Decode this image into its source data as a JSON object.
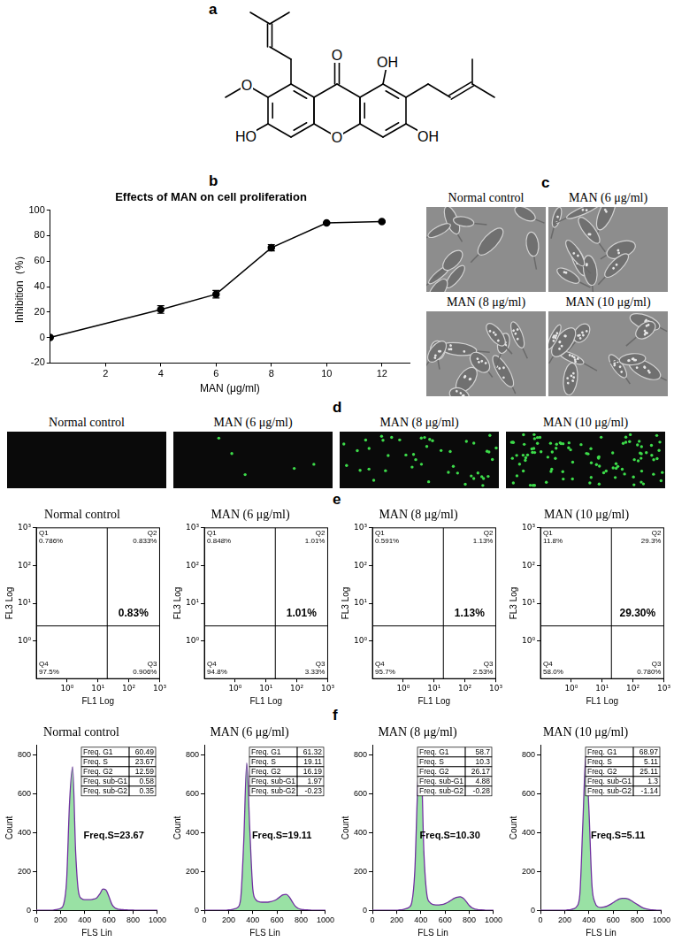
{
  "panels": {
    "a": {
      "label": "a",
      "structure": {
        "carbonyl": "O",
        "ring_oxygen": "O",
        "methoxy": "O",
        "hydroxyl_1": "OH",
        "hydroxyl_3": "OH",
        "hydroxyl_6": "HO"
      }
    },
    "b": {
      "label": "b"
    },
    "c": {
      "label": "c",
      "captions": [
        "Normal control",
        "MAN (6 μg/ml)",
        "MAN (8 μg/ml)",
        "MAN (10 μg/ml)"
      ]
    },
    "d": {
      "label": "d",
      "captions": [
        "Normal control",
        "MAN (6 μg/ml)",
        "MAN (8 μg/ml)",
        "MAN (10 μg/ml)"
      ]
    },
    "e": {
      "label": "e"
    },
    "f": {
      "label": "f"
    }
  },
  "chart_data": [
    {
      "type": "line",
      "title": "Effects of MAN on cell proliferation",
      "x_label": "MAN (μg/ml)",
      "y_label": "Inhibition（%）",
      "x": [
        0,
        4,
        6,
        8,
        10,
        12
      ],
      "values": [
        0,
        22,
        34,
        70.5,
        90,
        91
      ],
      "errors": [
        0,
        3,
        3,
        2.5,
        0.5,
        0.5
      ],
      "color": "#000000",
      "marker": "circle",
      "grid": false,
      "xlim": [
        0,
        13
      ],
      "xticks": [
        2,
        4,
        6,
        8,
        10,
        12
      ],
      "ylim": [
        -20,
        100
      ],
      "yticks": [
        -20,
        0,
        20,
        40,
        60,
        80,
        100
      ]
    },
    {
      "type": "scatter",
      "title": "Normal control",
      "x_label": "FL1 Log",
      "y_label": "FL3 Log",
      "log": true,
      "grid": false,
      "xlim": [
        0.1,
        1000
      ],
      "xticks": [
        {
          "value": 1,
          "label": "10⁰"
        },
        {
          "value": 10,
          "label": "10¹"
        },
        {
          "value": 100,
          "label": "10²"
        },
        {
          "value": 1000,
          "label": "10³"
        }
      ],
      "ylim": [
        0.1,
        1000
      ],
      "yticks": [
        {
          "value": 1,
          "label": "10⁰"
        },
        {
          "value": 10,
          "label": "10¹"
        },
        {
          "value": 100,
          "label": "10²"
        },
        {
          "value": 1000,
          "label": "10³"
        }
      ],
      "gate": {
        "x": 20,
        "y": 2.5
      },
      "quadrants": [
        {
          "name": "Q1",
          "label": "0.786%"
        },
        {
          "name": "Q2",
          "label": "0.833%"
        },
        {
          "name": "Q3",
          "label": "0.906%"
        },
        {
          "name": "Q4",
          "label": "97.5%"
        }
      ],
      "annotation": "0.83%"
    },
    {
      "type": "scatter",
      "title": "MAN (6 μg/ml)",
      "x_label": "FL1 Log",
      "y_label": "FL3 Log",
      "log": true,
      "grid": false,
      "xlim": [
        0.1,
        1000
      ],
      "xticks": [
        {
          "value": 1,
          "label": "10⁰"
        },
        {
          "value": 10,
          "label": "10¹"
        },
        {
          "value": 100,
          "label": "10²"
        },
        {
          "value": 1000,
          "label": "10³"
        }
      ],
      "ylim": [
        0.1,
        1000
      ],
      "yticks": [
        {
          "value": 1,
          "label": "10⁰"
        },
        {
          "value": 10,
          "label": "10¹"
        },
        {
          "value": 100,
          "label": "10²"
        },
        {
          "value": 1000,
          "label": "10³"
        }
      ],
      "gate": {
        "x": 20,
        "y": 2.5
      },
      "quadrants": [
        {
          "name": "Q1",
          "label": "0.848%"
        },
        {
          "name": "Q2",
          "label": "1.01%"
        },
        {
          "name": "Q3",
          "label": "3.33%"
        },
        {
          "name": "Q4",
          "label": "94.8%"
        }
      ],
      "annotation": "1.01%"
    },
    {
      "type": "scatter",
      "title": "MAN (8 μg/ml)",
      "x_label": "FL1 Log",
      "y_label": "FL3 Log",
      "log": true,
      "grid": false,
      "xlim": [
        0.1,
        1000
      ],
      "xticks": [
        {
          "value": 1,
          "label": "10⁰"
        },
        {
          "value": 10,
          "label": "10¹"
        },
        {
          "value": 100,
          "label": "10²"
        },
        {
          "value": 1000,
          "label": "10³"
        }
      ],
      "ylim": [
        0.1,
        1000
      ],
      "yticks": [
        {
          "value": 1,
          "label": "10⁰"
        },
        {
          "value": 10,
          "label": "10¹"
        },
        {
          "value": 100,
          "label": "10²"
        },
        {
          "value": 1000,
          "label": "10³"
        }
      ],
      "gate": {
        "x": 20,
        "y": 2.5
      },
      "quadrants": [
        {
          "name": "Q1",
          "label": "0.591%"
        },
        {
          "name": "Q2",
          "label": "1.13%"
        },
        {
          "name": "Q3",
          "label": "2.53%"
        },
        {
          "name": "Q4",
          "label": "95.7%"
        }
      ],
      "annotation": "1.13%"
    },
    {
      "type": "scatter",
      "title": "MAN (10 μg/ml)",
      "x_label": "FL1 Log",
      "y_label": "FL3 Log",
      "log": true,
      "grid": false,
      "xlim": [
        0.1,
        1000
      ],
      "xticks": [
        {
          "value": 1,
          "label": "10⁰"
        },
        {
          "value": 10,
          "label": "10¹"
        },
        {
          "value": 100,
          "label": "10²"
        },
        {
          "value": 1000,
          "label": "10³"
        }
      ],
      "ylim": [
        0.1,
        1000
      ],
      "yticks": [
        {
          "value": 1,
          "label": "10⁰"
        },
        {
          "value": 10,
          "label": "10¹"
        },
        {
          "value": 100,
          "label": "10²"
        },
        {
          "value": 1000,
          "label": "10³"
        }
      ],
      "gate": {
        "x": 20,
        "y": 2.5
      },
      "quadrants": [
        {
          "name": "Q1",
          "label": "11.8%"
        },
        {
          "name": "Q2",
          "label": "29.3%"
        },
        {
          "name": "Q3",
          "label": "0.780%"
        },
        {
          "name": "Q4",
          "label": "58.0%"
        }
      ],
      "annotation": "29.30%"
    },
    {
      "type": "area",
      "title": "Normal control",
      "x_label": "FLS Lin",
      "y_label": "Count",
      "color": "#7030a0",
      "grid": false,
      "x": [
        0,
        25,
        50,
        75,
        100,
        125,
        150,
        175,
        200,
        225,
        250,
        275,
        300,
        325,
        350,
        375,
        400,
        425,
        450,
        475,
        500,
        525,
        550,
        575,
        600,
        625,
        650,
        675,
        700,
        725,
        750,
        775,
        800,
        825,
        850,
        875,
        900,
        925,
        950,
        975,
        1000
      ],
      "values": [
        0,
        0,
        0,
        0,
        0,
        0,
        2,
        5,
        10,
        30,
        150,
        560,
        740,
        300,
        90,
        60,
        55,
        55,
        55,
        58,
        65,
        85,
        110,
        105,
        70,
        30,
        12,
        6,
        4,
        3,
        2,
        1,
        1,
        0,
        0,
        0,
        0,
        0,
        0,
        0,
        0
      ],
      "xlim": [
        0,
        1000
      ],
      "xticks": [
        0,
        200,
        400,
        600,
        800,
        1000
      ],
      "ylim": [
        0,
        850
      ],
      "yticks": [
        0,
        200,
        400,
        600,
        800
      ],
      "table": [
        {
          "label": "Freq. G1",
          "value": 60.49
        },
        {
          "label": "Freq. S",
          "value": 23.67
        },
        {
          "label": "Freq. G2",
          "value": 12.59
        },
        {
          "label": "Freq. sub-G1",
          "value": 0.58
        },
        {
          "label": "Freq. sub-G2",
          "value": 0.35
        }
      ],
      "annotation": "Freq.S=23.67"
    },
    {
      "type": "area",
      "title": "MAN (6 μg/ml)",
      "x_label": "FLS Lin",
      "y_label": "Count",
      "color": "#7030a0",
      "grid": false,
      "x": [
        0,
        25,
        50,
        75,
        100,
        125,
        150,
        175,
        200,
        225,
        250,
        275,
        300,
        325,
        350,
        375,
        400,
        425,
        450,
        475,
        500,
        525,
        550,
        575,
        600,
        625,
        650,
        675,
        700,
        725,
        750,
        775,
        800,
        825,
        850,
        875,
        900,
        925,
        950,
        975,
        1000
      ],
      "values": [
        0,
        0,
        0,
        0,
        0,
        0,
        0,
        0,
        2,
        4,
        8,
        15,
        60,
        350,
        760,
        420,
        110,
        55,
        45,
        42,
        42,
        42,
        45,
        50,
        58,
        70,
        80,
        82,
        70,
        45,
        22,
        10,
        5,
        3,
        2,
        1,
        0,
        0,
        0,
        0,
        0
      ],
      "xlim": [
        0,
        1000
      ],
      "xticks": [
        0,
        200,
        400,
        600,
        800,
        1000
      ],
      "ylim": [
        0,
        850
      ],
      "yticks": [
        0,
        200,
        400,
        600,
        800
      ],
      "table": [
        {
          "label": "Freq. G1",
          "value": 61.32
        },
        {
          "label": "Freq. S",
          "value": 19.11
        },
        {
          "label": "Freq. G2",
          "value": 16.19
        },
        {
          "label": "Freq. sub-G1",
          "value": 1.97
        },
        {
          "label": "Freq. sub-G2",
          "value": -0.23
        }
      ],
      "annotation": "Freq.S=19.11"
    },
    {
      "type": "area",
      "title": "MAN (8 μg/ml)",
      "x_label": "FLS Lin",
      "y_label": "Count",
      "color": "#7030a0",
      "grid": false,
      "x": [
        0,
        25,
        50,
        75,
        100,
        125,
        150,
        175,
        200,
        225,
        250,
        275,
        300,
        325,
        350,
        375,
        400,
        425,
        450,
        475,
        500,
        525,
        550,
        575,
        600,
        625,
        650,
        675,
        700,
        725,
        750,
        775,
        800,
        825,
        850,
        875,
        900,
        925,
        950,
        975,
        1000
      ],
      "values": [
        0,
        0,
        0,
        0,
        0,
        0,
        0,
        0,
        0,
        2,
        4,
        8,
        15,
        40,
        200,
        650,
        790,
        300,
        80,
        40,
        30,
        28,
        28,
        30,
        35,
        42,
        52,
        62,
        68,
        70,
        62,
        45,
        25,
        12,
        6,
        3,
        2,
        1,
        0,
        0,
        0
      ],
      "xlim": [
        0,
        1000
      ],
      "xticks": [
        0,
        200,
        400,
        600,
        800,
        1000
      ],
      "ylim": [
        0,
        850
      ],
      "yticks": [
        0,
        200,
        400,
        600,
        800
      ],
      "table": [
        {
          "label": "Freq. G1",
          "value": 58.7
        },
        {
          "label": "Freq. S",
          "value": 10.3
        },
        {
          "label": "Freq. G2",
          "value": 26.17
        },
        {
          "label": "Freq. sub-G1",
          "value": 4.88
        },
        {
          "label": "Freq. sub-G2",
          "value": -0.28
        }
      ],
      "annotation": "Freq.S=10.30"
    },
    {
      "type": "area",
      "title": "MAN (10 μg/ml)",
      "x_label": "FLS Lin",
      "y_label": "Count",
      "color": "#7030a0",
      "grid": false,
      "x": [
        0,
        25,
        50,
        75,
        100,
        125,
        150,
        175,
        200,
        225,
        250,
        275,
        300,
        325,
        350,
        375,
        400,
        425,
        450,
        475,
        500,
        525,
        550,
        575,
        600,
        625,
        650,
        675,
        700,
        725,
        750,
        775,
        800,
        825,
        850,
        875,
        900,
        925,
        950,
        975,
        1000
      ],
      "values": [
        0,
        0,
        0,
        0,
        0,
        0,
        0,
        0,
        0,
        2,
        4,
        8,
        20,
        80,
        450,
        800,
        520,
        130,
        40,
        18,
        15,
        17,
        22,
        30,
        40,
        50,
        58,
        62,
        62,
        58,
        50,
        40,
        30,
        20,
        12,
        7,
        4,
        2,
        1,
        0,
        0
      ],
      "xlim": [
        0,
        1000
      ],
      "xticks": [
        0,
        200,
        400,
        600,
        800,
        1000
      ],
      "ylim": [
        0,
        850
      ],
      "yticks": [
        0,
        200,
        400,
        600,
        800
      ],
      "table": [
        {
          "label": "Freq. G1",
          "value": 68.97
        },
        {
          "label": "Freq. S",
          "value": 5.11
        },
        {
          "label": "Freq. G2",
          "value": 25.11
        },
        {
          "label": "Freq. sub-G1",
          "value": 1.3
        },
        {
          "label": "Freq. sub-G2",
          "value": -1.14
        }
      ],
      "annotation": "Freq.S=5.11"
    }
  ]
}
